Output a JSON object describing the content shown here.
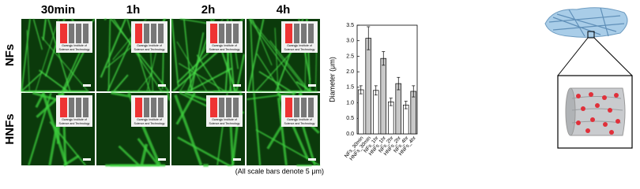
{
  "figure": {
    "columns": [
      "30min",
      "1h",
      "2h",
      "4h"
    ],
    "rows": [
      "NFs",
      "HNFs"
    ],
    "logo_lines": [
      "Gwangju Institute of",
      "Science and Technology"
    ],
    "caption": "(All scale bars denote 5 μm)"
  },
  "chart_data": {
    "type": "bar",
    "y_label": "Diameter (μm)",
    "categories": [
      "NFs_30min",
      "HNFs_30min",
      "NFs_1hr",
      "HNFs_1hr",
      "NFs_2hr",
      "HNFs_2hr",
      "NFs_4hr",
      "HNFs_4hr"
    ],
    "values": [
      1.42,
      3.08,
      1.4,
      2.43,
      1.03,
      1.62,
      0.93,
      1.37
    ],
    "errors": [
      0.13,
      0.37,
      0.15,
      0.22,
      0.12,
      0.2,
      0.12,
      0.18
    ],
    "colors": [
      "#ffffff",
      "#c8c8c8",
      "#ffffff",
      "#c8c8c8",
      "#ffffff",
      "#c8c8c8",
      "#ffffff",
      "#c8c8c8"
    ],
    "ylim": [
      0,
      3.5
    ],
    "yticks": [
      {
        "value": 0,
        "label": "0.0"
      },
      {
        "value": 0.5,
        "label": "0.5"
      },
      {
        "value": 1,
        "label": "1.0"
      },
      {
        "value": 1.5,
        "label": "1.5"
      },
      {
        "value": 2,
        "label": "2.0"
      },
      {
        "value": 2.5,
        "label": "2.5"
      },
      {
        "value": 3,
        "label": "3.0"
      },
      {
        "value": 3.5,
        "label": "3.5"
      }
    ]
  }
}
